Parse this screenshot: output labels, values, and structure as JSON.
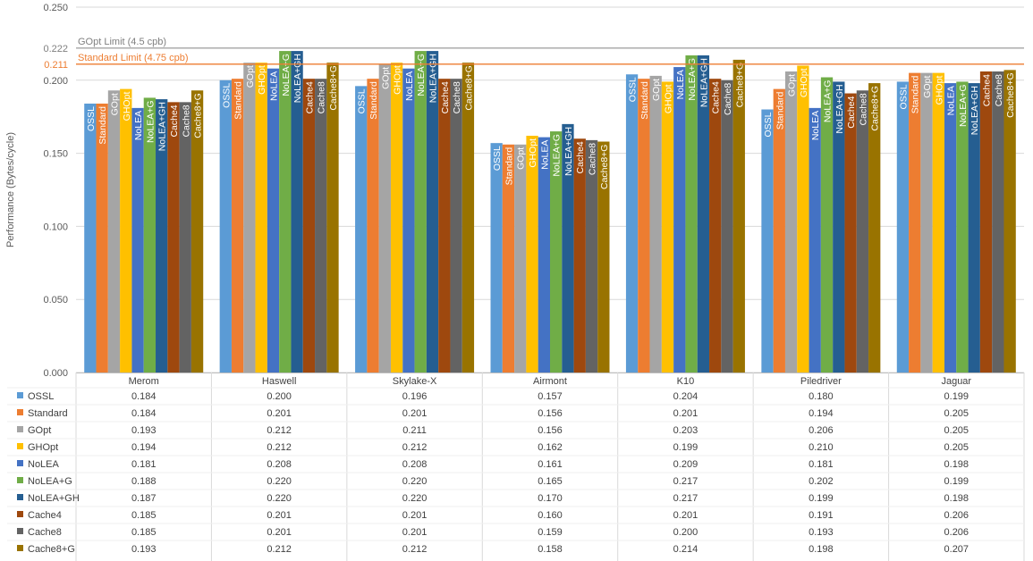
{
  "chart_data": {
    "type": "bar",
    "title": "",
    "xlabel": "",
    "ylabel": "Performance (Bytes/cycle)",
    "ylim": [
      0,
      0.25
    ],
    "yticks": [
      "0.000",
      "0.050",
      "0.100",
      "0.150",
      "0.200",
      "0.250"
    ],
    "grid": true,
    "categories": [
      "Merom",
      "Haswell",
      "Skylake-X",
      "Airmont",
      "K10",
      "Piledriver",
      "Jaguar"
    ],
    "series": [
      {
        "name": "OSSL",
        "color": "#5B9BD5",
        "values": [
          0.184,
          0.2,
          0.196,
          0.157,
          0.204,
          0.18,
          0.199
        ],
        "labels": [
          "0.184",
          "0.200",
          "0.196",
          "0.157",
          "0.204",
          "0.180",
          "0.199"
        ]
      },
      {
        "name": "Standard",
        "color": "#ED7D31",
        "values": [
          0.184,
          0.201,
          0.201,
          0.156,
          0.201,
          0.194,
          0.205
        ],
        "labels": [
          "0.184",
          "0.201",
          "0.201",
          "0.156",
          "0.201",
          "0.194",
          "0.205"
        ]
      },
      {
        "name": "GOpt",
        "color": "#A5A5A5",
        "values": [
          0.193,
          0.212,
          0.211,
          0.156,
          0.203,
          0.206,
          0.205
        ],
        "labels": [
          "0.193",
          "0.212",
          "0.211",
          "0.156",
          "0.203",
          "0.206",
          "0.205"
        ]
      },
      {
        "name": "GHOpt",
        "color": "#FFC000",
        "values": [
          0.194,
          0.212,
          0.212,
          0.162,
          0.199,
          0.21,
          0.205
        ],
        "labels": [
          "0.194",
          "0.212",
          "0.212",
          "0.162",
          "0.199",
          "0.210",
          "0.205"
        ]
      },
      {
        "name": "NoLEA",
        "color": "#4472C4",
        "values": [
          0.181,
          0.208,
          0.208,
          0.161,
          0.209,
          0.181,
          0.198
        ],
        "labels": [
          "0.181",
          "0.208",
          "0.208",
          "0.161",
          "0.209",
          "0.181",
          "0.198"
        ]
      },
      {
        "name": "NoLEA+G",
        "color": "#70AD47",
        "values": [
          0.188,
          0.22,
          0.22,
          0.165,
          0.217,
          0.202,
          0.199
        ],
        "labels": [
          "0.188",
          "0.220",
          "0.220",
          "0.165",
          "0.217",
          "0.202",
          "0.199"
        ]
      },
      {
        "name": "NoLEA+GH",
        "color": "#255E91",
        "values": [
          0.187,
          0.22,
          0.22,
          0.17,
          0.217,
          0.199,
          0.198
        ],
        "labels": [
          "0.187",
          "0.220",
          "0.220",
          "0.170",
          "0.217",
          "0.199",
          "0.198"
        ]
      },
      {
        "name": "Cache4",
        "color": "#9E480E",
        "values": [
          0.185,
          0.201,
          0.201,
          0.16,
          0.201,
          0.191,
          0.206
        ],
        "labels": [
          "0.185",
          "0.201",
          "0.201",
          "0.160",
          "0.201",
          "0.191",
          "0.206"
        ]
      },
      {
        "name": "Cache8",
        "color": "#636363",
        "values": [
          0.185,
          0.201,
          0.201,
          0.159,
          0.2,
          0.193,
          0.206
        ],
        "labels": [
          "0.185",
          "0.201",
          "0.201",
          "0.159",
          "0.200",
          "0.193",
          "0.206"
        ]
      },
      {
        "name": "Cache8+G",
        "color": "#997300",
        "values": [
          0.193,
          0.212,
          0.212,
          0.158,
          0.214,
          0.198,
          0.207
        ],
        "labels": [
          "0.193",
          "0.212",
          "0.212",
          "0.158",
          "0.214",
          "0.198",
          "0.207"
        ]
      }
    ],
    "reference_lines": [
      {
        "value": 0.222,
        "value_label": "0.222",
        "label": "GOpt Limit (4.5 cpb)",
        "color": "#A5A5A5",
        "label_color": "#7F7F7F"
      },
      {
        "value": 0.211,
        "value_label": "0.211",
        "label": "Standard Limit (4.75 cpb)",
        "color": "#ED7D31",
        "label_color": "#ED7D31"
      }
    ],
    "legend": "data-table-below"
  }
}
